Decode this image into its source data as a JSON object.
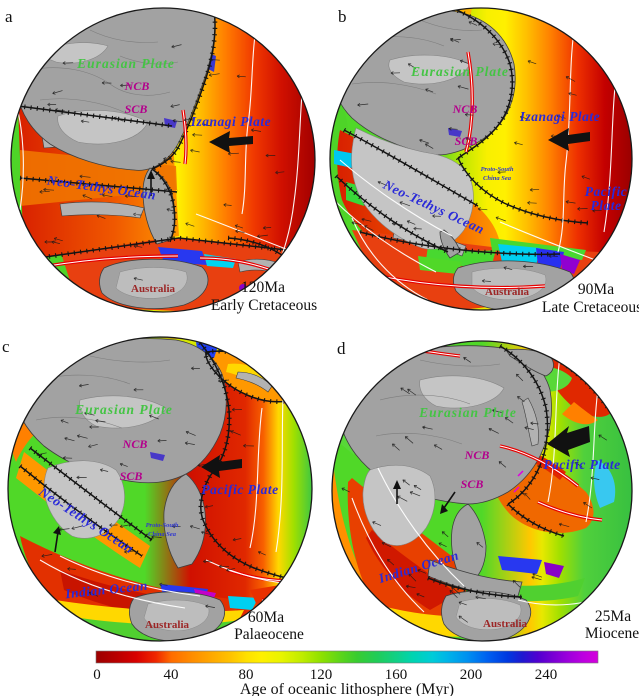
{
  "panels": [
    {
      "letter": "a",
      "age": "120Ma",
      "epoch": "Early Cretaceous",
      "labels": {
        "eurasian": "Eurasian Plate",
        "ncb": "NCB",
        "scb": "SCB",
        "izanagi": "Izanagi Plate",
        "tethys": "Neo-Tethys Ocean",
        "australia": "Australia"
      }
    },
    {
      "letter": "b",
      "age": "90Ma",
      "epoch": "Late Cretaceous",
      "labels": {
        "eurasian": "Eurasian Plate",
        "ncb": "NCB",
        "scb": "SCB",
        "izanagi": "Izanagi Plate",
        "pacific_line1": "Pacific",
        "pacific_line2": "Plate",
        "tethys": "Neo-Tethys Ocean",
        "psc_line1": "Proto-South",
        "psc_line2": "China Sea",
        "australia": "Australia"
      }
    },
    {
      "letter": "c",
      "age": "60Ma",
      "epoch": "Palaeocene",
      "labels": {
        "eurasian": "Eurasian Plate",
        "ncb": "NCB",
        "scb": "SCB",
        "pacific": "Pacific Plate",
        "tethys": "Neo-Tethys Ocean",
        "indian": "Indian Ocean",
        "psc_line1": "Proto-South",
        "psc_line2": "China Sea",
        "australia": "Australia"
      }
    },
    {
      "letter": "d",
      "age": "25Ma",
      "epoch": "Miocene",
      "labels": {
        "eurasian": "Eurasian Plate",
        "ncb": "NCB",
        "scb": "SCB",
        "pacific": "Pacific Plate",
        "indian": "Indian Ocean",
        "australia": "Australia"
      }
    }
  ],
  "colorbar": {
    "ticks": [
      "0",
      "40",
      "80",
      "120",
      "160",
      "200",
      "240"
    ],
    "title": "Age of oceanic lithosphere (Myr)",
    "scale_colors": [
      "#9C0000",
      "#FF6C00",
      "#FFF000",
      "#58D41C",
      "#00D4B0",
      "#0060F0",
      "#9C00DC",
      "#D400DC"
    ]
  },
  "label_colors": {
    "plate_names": "#2A2AD8",
    "eurasian_plate": "#44C444",
    "continental_blocks": "#B4008C",
    "australia": "#9C2626",
    "panel_text": "#111111"
  }
}
